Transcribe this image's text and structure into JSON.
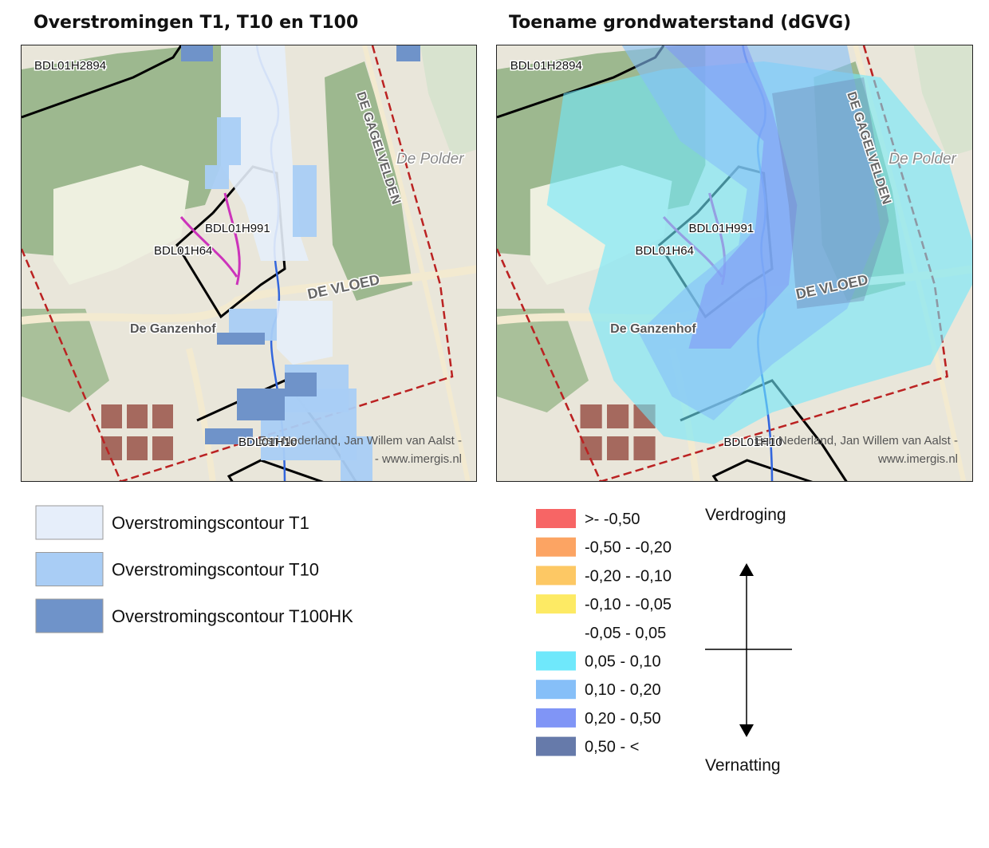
{
  "maps": [
    {
      "title": "Overstromingen T1, T10 en T100",
      "labels": {
        "well_north": "BDL01H2894",
        "well_mid": "BDL01H991",
        "well_west": "BDL01H64",
        "well_south": "BDL01H10",
        "farm": "De Ganzenhof",
        "road": "DE VLOED",
        "road_east": "DE GAGELVELDEN",
        "polder": "De Polder"
      },
      "attribution": [
        "Esri Nederland, Jan Willem van Aalst -",
        "- www.imergis.nl"
      ]
    },
    {
      "title": "Toename grondwaterstand (dGVG)",
      "labels": {
        "well_north": "BDL01H2894",
        "well_mid": "BDL01H991",
        "well_west": "BDL01H64",
        "well_south": "BDL01H10",
        "farm": "De Ganzenhof",
        "road": "DE VLOED",
        "road_east": "DE GAGELVELDEN",
        "polder": "De Polder"
      },
      "attribution": [
        "Esri Nederland, Jan Willem van Aalst -",
        "www.imergis.nl"
      ]
    }
  ],
  "legend_flood": [
    {
      "label": "Overstromingscontour T1",
      "color": "#e6eefa"
    },
    {
      "label": "Overstromingscontour T10",
      "color": "#a9cdf5"
    },
    {
      "label": "Overstromingscontour T100HK",
      "color": "#6f93c9"
    }
  ],
  "legend_dgvg": {
    "classes": [
      {
        "label": ">- -0,50",
        "color": "#f76565"
      },
      {
        "label": "-0,50 - -0,20",
        "color": "#fca463"
      },
      {
        "label": "-0,20 - -0,10",
        "color": "#fdc864"
      },
      {
        "label": "-0,10 - -0,05",
        "color": "#fdea64"
      },
      {
        "label": "-0,05 - 0,05",
        "color": "#ffffff"
      },
      {
        "label": "0,05 - 0,10",
        "color": "#6fe8fb"
      },
      {
        "label": "0,10 - 0,20",
        "color": "#86bff8"
      },
      {
        "label": "0,20 - 0,50",
        "color": "#8095f6"
      },
      {
        "label": "0,50 - <",
        "color": "#667aaa"
      }
    ],
    "top": "Verdroging",
    "bottom": "Vernatting"
  }
}
